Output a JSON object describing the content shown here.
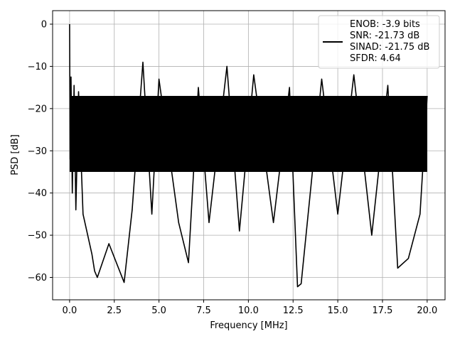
{
  "chart_data": {
    "type": "line",
    "xlabel": "Frequency [MHz]",
    "ylabel": "PSD [dB]",
    "xlim": [
      -0.95,
      21.0
    ],
    "ylim": [
      -65.3,
      3.2
    ],
    "xticks": [
      0.0,
      2.5,
      5.0,
      7.5,
      10.0,
      12.5,
      15.0,
      17.5,
      20.0
    ],
    "xtick_labels": [
      "0.0",
      "2.5",
      "5.0",
      "7.5",
      "10.0",
      "12.5",
      "15.0",
      "17.5",
      "20.0"
    ],
    "yticks": [
      0,
      -10,
      -20,
      -30,
      -40,
      -50,
      -60
    ],
    "ytick_labels": [
      "0",
      "−10",
      "−20",
      "−30",
      "−40",
      "−50",
      "−60"
    ],
    "grid": true,
    "legend_position": "top-right",
    "legend": {
      "entries": [
        "ENOB: -3.9 bits",
        "SNR: -21.73 dB",
        "SINAD: -21.75 dB",
        "SFDR: 4.64"
      ]
    },
    "series": [
      {
        "color": "#000000",
        "noise_band": {
          "x_start": 0.0,
          "x_end": 20.0,
          "upper": -17.0,
          "lower": -35.0
        },
        "x": [
          0.0,
          0.03,
          0.08,
          0.15,
          0.25,
          0.35,
          0.5,
          0.75,
          1.25,
          1.4,
          1.55,
          2.2,
          3.05,
          3.5,
          4.1,
          4.6,
          5.0,
          6.1,
          6.65,
          7.2,
          7.8,
          8.8,
          9.5,
          10.3,
          11.4,
          12.3,
          12.75,
          12.95,
          14.1,
          15.0,
          15.9,
          16.9,
          17.8,
          18.35,
          18.95,
          19.6,
          20.0
        ],
        "y": [
          0,
          -32,
          -12.5,
          -40,
          -14.5,
          -44,
          -16,
          -45,
          -54.5,
          -58.5,
          -60,
          -52,
          -61.2,
          -44,
          -9,
          -45,
          -13,
          -47,
          -56.5,
          -15,
          -47,
          -10,
          -49,
          -12,
          -47,
          -15,
          -62.2,
          -61.5,
          -13,
          -45,
          -12,
          -50,
          -14.5,
          -57.8,
          -55.5,
          -45,
          -17
        ]
      }
    ]
  }
}
